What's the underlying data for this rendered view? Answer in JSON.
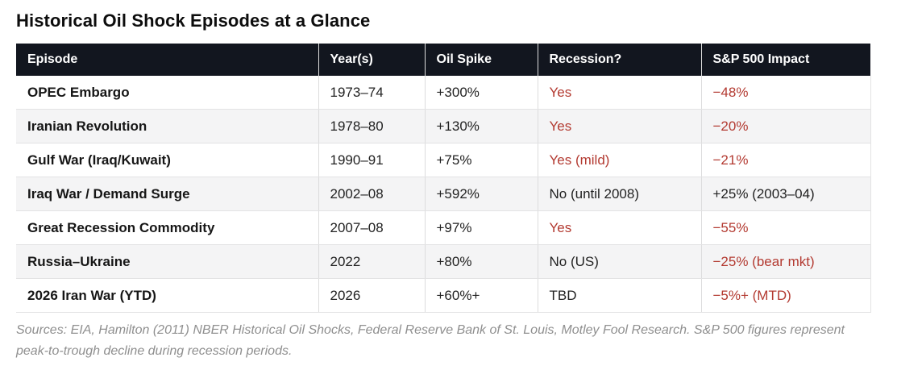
{
  "colors": {
    "header_bg": "#12161f",
    "accent_red": "#b33a31",
    "row_alt_bg": "#f4f4f5"
  },
  "chart_data": {
    "type": "table",
    "title": "Historical Oil Shock Episodes at a Glance",
    "columns": [
      "Episode",
      "Year(s)",
      "Oil Spike",
      "Recession?",
      "S&P 500 Impact"
    ],
    "rows": [
      {
        "cells": [
          "OPEC Embargo",
          "1973–74",
          "+300%",
          "Yes",
          "−48%"
        ],
        "red_cells": [
          3,
          4
        ]
      },
      {
        "cells": [
          "Iranian Revolution",
          "1978–80",
          "+130%",
          "Yes",
          "−20%"
        ],
        "red_cells": [
          3,
          4
        ]
      },
      {
        "cells": [
          "Gulf War (Iraq/Kuwait)",
          "1990–91",
          "+75%",
          "Yes (mild)",
          "−21%"
        ],
        "red_cells": [
          3,
          4
        ]
      },
      {
        "cells": [
          "Iraq War / Demand Surge",
          "2002–08",
          "+592%",
          "No (until 2008)",
          "+25% (2003–04)"
        ],
        "red_cells": []
      },
      {
        "cells": [
          "Great Recession Commodity",
          "2007–08",
          "+97%",
          "Yes",
          "−55%"
        ],
        "red_cells": [
          3,
          4
        ]
      },
      {
        "cells": [
          "Russia–Ukraine",
          "2022",
          "+80%",
          "No (US)",
          "−25% (bear mkt)"
        ],
        "red_cells": [
          4
        ]
      },
      {
        "cells": [
          "2026 Iran War (YTD)",
          "2026",
          "+60%+",
          "TBD",
          "−5%+ (MTD)"
        ],
        "red_cells": [
          4
        ]
      }
    ]
  },
  "footnote": "Sources: EIA, Hamilton (2011) NBER Historical Oil Shocks, Federal Reserve Bank of St. Louis, Motley Fool Research. S&P 500 figures represent peak-to-trough decline during recession periods."
}
